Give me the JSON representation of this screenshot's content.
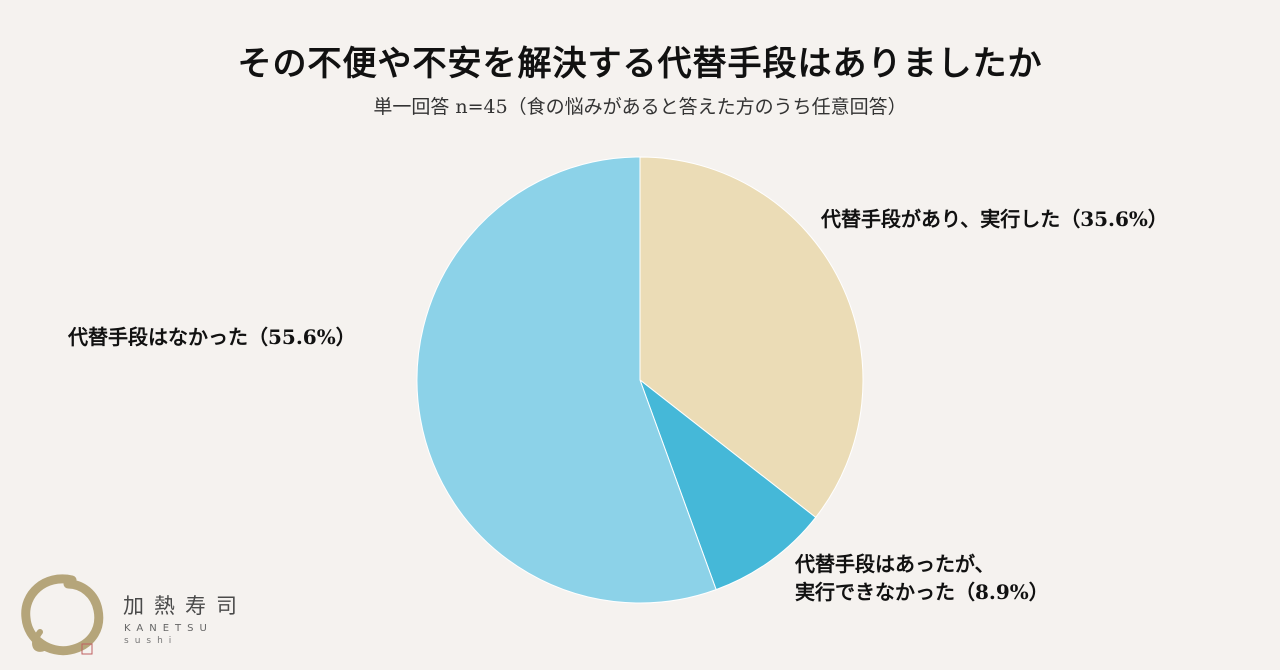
{
  "title": "その不便や不安を解決する代替手段はありましたか",
  "subtitle": "単一回答 n=45（食の悩みがあると答えた方のうち任意回答）",
  "chart_data": {
    "type": "pie",
    "title": "その不便や不安を解決する代替手段はありましたか",
    "subtitle": "単一回答 n=45（食の悩みがあると答えた方のうち任意回答）",
    "slices": [
      {
        "label": "代替手段があり、実行した（35.6%）",
        "value": 35.6,
        "color": "#ebdcb6"
      },
      {
        "label": "代替手段はあったが、実行できなかった（8.9%）",
        "label_lines": [
          "代替手段はあったが、",
          "実行できなかった（8.9%）"
        ],
        "value": 8.9,
        "color": "#45b8d8"
      },
      {
        "label": "代替手段はなかった（55.6%）",
        "value": 55.6,
        "color": "#8cd2e8"
      }
    ]
  },
  "logo": {
    "name": "加熱寿司",
    "romaji": "KANETSU",
    "sub": "sushi",
    "color": "#b5a57a"
  }
}
